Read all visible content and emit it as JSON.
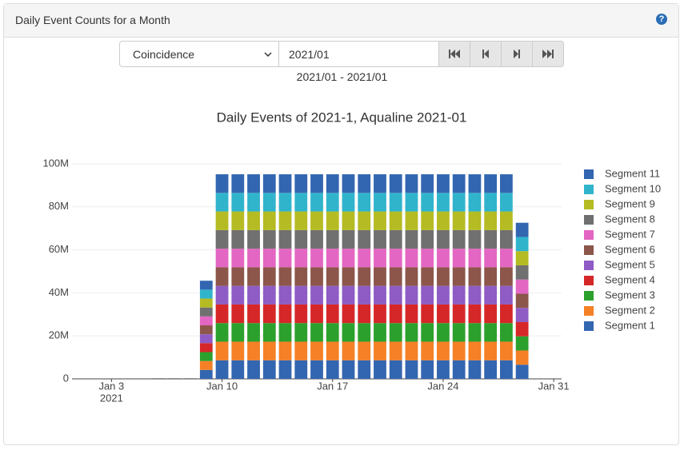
{
  "header": {
    "title": "Daily Event Counts for a Month",
    "help": "?"
  },
  "controls": {
    "select": "Coincidence",
    "month_input": "2021/01",
    "range_text": "2021/01 - 2021/01"
  },
  "chart_data": {
    "type": "stacked-bar",
    "title": "Daily Events of 2021-1, Aqualine 2021-01",
    "x": [
      "2021-01-06",
      "2021-01-07",
      "2021-01-08",
      "2021-01-09",
      "2021-01-10",
      "2021-01-11",
      "2021-01-12",
      "2021-01-13",
      "2021-01-14",
      "2021-01-15",
      "2021-01-16",
      "2021-01-17",
      "2021-01-18",
      "2021-01-19",
      "2021-01-20",
      "2021-01-21",
      "2021-01-22",
      "2021-01-23",
      "2021-01-24",
      "2021-01-25",
      "2021-01-26",
      "2021-01-27",
      "2021-01-28",
      "2021-01-29"
    ],
    "series": [
      {
        "name": "Segment 1",
        "color": "#3366b0",
        "values": [
          30000,
          30000,
          30000,
          4150000,
          8650000,
          8650000,
          8650000,
          8650000,
          8650000,
          8650000,
          8650000,
          8650000,
          8650000,
          8650000,
          8650000,
          8650000,
          8650000,
          8650000,
          8650000,
          8650000,
          8650000,
          8650000,
          8650000,
          6600000
        ]
      },
      {
        "name": "Segment 2",
        "color": "#f58025",
        "values": [
          30000,
          30000,
          30000,
          4150000,
          8650000,
          8650000,
          8650000,
          8650000,
          8650000,
          8650000,
          8650000,
          8650000,
          8650000,
          8650000,
          8650000,
          8650000,
          8650000,
          8650000,
          8650000,
          8650000,
          8650000,
          8650000,
          8650000,
          6600000
        ]
      },
      {
        "name": "Segment 3",
        "color": "#2ca02c",
        "values": [
          30000,
          30000,
          30000,
          4150000,
          8650000,
          8650000,
          8650000,
          8650000,
          8650000,
          8650000,
          8650000,
          8650000,
          8650000,
          8650000,
          8650000,
          8650000,
          8650000,
          8650000,
          8650000,
          8650000,
          8650000,
          8650000,
          8650000,
          6600000
        ]
      },
      {
        "name": "Segment 4",
        "color": "#d62728",
        "values": [
          30000,
          30000,
          30000,
          4150000,
          8650000,
          8650000,
          8650000,
          8650000,
          8650000,
          8650000,
          8650000,
          8650000,
          8650000,
          8650000,
          8650000,
          8650000,
          8650000,
          8650000,
          8650000,
          8650000,
          8650000,
          8650000,
          8650000,
          6600000
        ]
      },
      {
        "name": "Segment 5",
        "color": "#8e5cc4",
        "values": [
          30000,
          30000,
          30000,
          4150000,
          8650000,
          8650000,
          8650000,
          8650000,
          8650000,
          8650000,
          8650000,
          8650000,
          8650000,
          8650000,
          8650000,
          8650000,
          8650000,
          8650000,
          8650000,
          8650000,
          8650000,
          8650000,
          8650000,
          6600000
        ]
      },
      {
        "name": "Segment 6",
        "color": "#8c564b",
        "values": [
          30000,
          30000,
          30000,
          4150000,
          8650000,
          8650000,
          8650000,
          8650000,
          8650000,
          8650000,
          8650000,
          8650000,
          8650000,
          8650000,
          8650000,
          8650000,
          8650000,
          8650000,
          8650000,
          8650000,
          8650000,
          8650000,
          8650000,
          6600000
        ]
      },
      {
        "name": "Segment 7",
        "color": "#e366c2",
        "values": [
          30000,
          30000,
          30000,
          4150000,
          8650000,
          8650000,
          8650000,
          8650000,
          8650000,
          8650000,
          8650000,
          8650000,
          8650000,
          8650000,
          8650000,
          8650000,
          8650000,
          8650000,
          8650000,
          8650000,
          8650000,
          8650000,
          8650000,
          6600000
        ]
      },
      {
        "name": "Segment 8",
        "color": "#707070",
        "values": [
          30000,
          30000,
          30000,
          4150000,
          8650000,
          8650000,
          8650000,
          8650000,
          8650000,
          8650000,
          8650000,
          8650000,
          8650000,
          8650000,
          8650000,
          8650000,
          8650000,
          8650000,
          8650000,
          8650000,
          8650000,
          8650000,
          8650000,
          6600000
        ]
      },
      {
        "name": "Segment 9",
        "color": "#b5bb22",
        "values": [
          30000,
          30000,
          30000,
          4150000,
          8650000,
          8650000,
          8650000,
          8650000,
          8650000,
          8650000,
          8650000,
          8650000,
          8650000,
          8650000,
          8650000,
          8650000,
          8650000,
          8650000,
          8650000,
          8650000,
          8650000,
          8650000,
          8650000,
          6600000
        ]
      },
      {
        "name": "Segment 10",
        "color": "#30b4cc",
        "values": [
          30000,
          30000,
          30000,
          4150000,
          8650000,
          8650000,
          8650000,
          8650000,
          8650000,
          8650000,
          8650000,
          8650000,
          8650000,
          8650000,
          8650000,
          8650000,
          8650000,
          8650000,
          8650000,
          8650000,
          8650000,
          8650000,
          8650000,
          6600000
        ]
      },
      {
        "name": "Segment 11",
        "color": "#3366b0",
        "values": [
          30000,
          30000,
          30000,
          4150000,
          8650000,
          8650000,
          8650000,
          8650000,
          8650000,
          8650000,
          8650000,
          8650000,
          8650000,
          8650000,
          8650000,
          8650000,
          8650000,
          8650000,
          8650000,
          8650000,
          8650000,
          8650000,
          8650000,
          6600000
        ]
      }
    ],
    "xlim": [
      "2020-12-31T12:00",
      "2021-01-31T12:00"
    ],
    "xticks": [
      {
        "value": "2021-01-03",
        "label": "Jan 3"
      },
      {
        "value": "2021-01-10",
        "label": "Jan 10"
      },
      {
        "value": "2021-01-17",
        "label": "Jan 17"
      },
      {
        "value": "2021-01-24",
        "label": "Jan 24"
      },
      {
        "value": "2021-01-31",
        "label": "Jan 31"
      }
    ],
    "x_year_label": "2021",
    "ylim": [
      0,
      100000000
    ],
    "yticks": [
      0,
      {
        "value": 20000000,
        "label": "20M"
      },
      {
        "value": 40000000,
        "label": "40M"
      },
      {
        "value": 60000000,
        "label": "60M"
      },
      {
        "value": 80000000,
        "label": "80M"
      },
      {
        "value": 100000000,
        "label": "100M"
      }
    ],
    "grid": true,
    "legend": "right"
  }
}
